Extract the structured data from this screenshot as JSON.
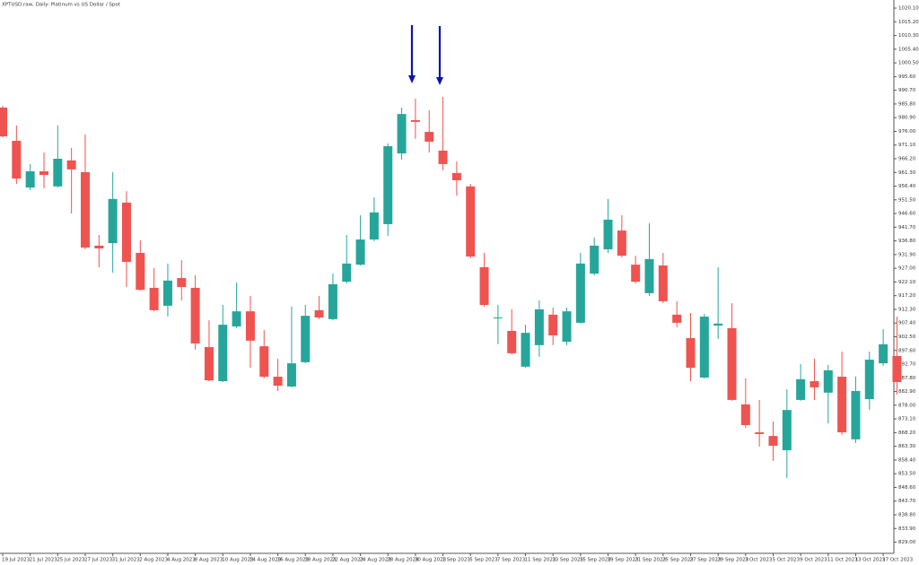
{
  "chart_data": {
    "type": "candlestick",
    "title": "XPTUSD.raw, Daily: Platinum vs US Dollar / Spot",
    "categories": [
      "19 Jul 2023",
      null,
      "21 Jul 2023",
      null,
      "25 Jul 2023",
      null,
      "27 Jul 2023",
      null,
      "31 Jul 2023",
      null,
      "2 Aug 2023",
      null,
      "4 Aug 2023",
      null,
      "8 Aug 2023",
      null,
      "10 Aug 2023",
      null,
      "14 Aug 2023",
      null,
      "16 Aug 2023",
      null,
      "18 Aug 2023",
      null,
      "22 Aug 2023",
      null,
      "24 Aug 2023",
      null,
      "28 Aug 2023",
      null,
      "30 Aug 2023",
      null,
      "1 Sep 2023",
      null,
      "5 Sep 2023",
      null,
      "7 Sep 2023",
      null,
      "11 Sep 2023",
      null,
      "13 Sep 2023",
      null,
      "15 Sep 2023",
      null,
      "19 Sep 2023",
      null,
      "21 Sep 2023",
      null,
      "25 Sep 2023",
      null,
      "27 Sep 2023",
      null,
      "29 Sep 2023",
      null,
      "3 Oct 2023",
      null,
      "5 Oct 2023",
      null,
      "9 Oct 2023",
      null,
      "11 Oct 2023",
      null,
      "13 Oct 2023",
      null,
      "17 Oct 2023",
      null
    ],
    "open": [
      984.5,
      972.6,
      955.9,
      961.7,
      956.3,
      965.6,
      961.4,
      935.1,
      936.0,
      950.5,
      932.5,
      920.0,
      913.6,
      923.5,
      920.0,
      898.8,
      886.6,
      906.2,
      911.6,
      899.1,
      888.2,
      884.7,
      893.4,
      912.0,
      908.8,
      922.2,
      928.3,
      937.3,
      942.8,
      968.1,
      980.0,
      975.8,
      969.1,
      961.1,
      956.3,
      927.4,
      909.1,
      904.6,
      891.8,
      899.5,
      910.4,
      900.7,
      907.5,
      925.1,
      933.8,
      940.5,
      928.3,
      918.1,
      928.0,
      910.4,
      902.0,
      887.9,
      906.5,
      905.6,
      878.3,
      868.3,
      867.0,
      861.9,
      879.9,
      886.6,
      882.5,
      888.2,
      865.8,
      880.2,
      893.0,
      895.6
    ],
    "high": [
      985.1,
      978.1,
      964.3,
      968.4,
      978.1,
      970.1,
      974.9,
      938.9,
      961.4,
      954.6,
      937.0,
      927.1,
      928.7,
      929.9,
      924.5,
      908.4,
      913.9,
      921.9,
      917.1,
      904.9,
      894.6,
      913.3,
      913.9,
      917.1,
      925.1,
      938.9,
      946.0,
      952.4,
      971.7,
      984.5,
      987.7,
      983.5,
      988.3,
      965.2,
      957.2,
      932.5,
      913.9,
      912.3,
      906.8,
      915.5,
      912.9,
      912.9,
      932.5,
      938.0,
      951.8,
      946.0,
      931.5,
      943.1,
      932.5,
      915.2,
      911.0,
      910.7,
      927.4,
      914.5,
      887.6,
      879.9,
      872.2,
      883.7,
      892.7,
      894.6,
      892.4,
      897.2,
      888.2,
      897.2,
      905.2,
      909.7
    ],
    "low": [
      973.9,
      957.2,
      955.0,
      955.6,
      955.9,
      946.6,
      933.8,
      927.4,
      925.4,
      920.3,
      919.0,
      911.6,
      909.7,
      915.5,
      897.9,
      886.6,
      886.3,
      905.6,
      891.4,
      887.6,
      883.1,
      884.4,
      893.1,
      908.8,
      908.4,
      921.6,
      928.0,
      936.7,
      938.6,
      965.9,
      973.3,
      968.4,
      962.0,
      953.0,
      930.6,
      913.3,
      899.8,
      896.2,
      891.4,
      895.3,
      899.5,
      899.5,
      907.2,
      924.5,
      932.5,
      930.9,
      921.6,
      917.1,
      914.5,
      905.9,
      886.6,
      887.6,
      901.7,
      879.6,
      869.9,
      863.2,
      858.1,
      852.0,
      879.6,
      879.9,
      871.5,
      867.4,
      864.5,
      876.3,
      892.1,
      881.8
    ],
    "close": [
      974.2,
      959.1,
      961.7,
      960.4,
      966.2,
      962.4,
      934.4,
      934.1,
      951.8,
      929.3,
      919.3,
      912.0,
      922.6,
      920.3,
      900.1,
      886.9,
      906.8,
      911.6,
      901.1,
      888.2,
      885.0,
      893.0,
      910.0,
      909.4,
      921.3,
      928.7,
      937.3,
      947.0,
      970.7,
      982.2,
      979.4,
      972.3,
      964.3,
      958.5,
      931.2,
      913.9,
      909.4,
      896.6,
      903.9,
      912.3,
      903.0,
      911.6,
      928.7,
      935.1,
      944.4,
      931.5,
      922.2,
      930.3,
      915.2,
      907.5,
      891.4,
      909.7,
      907.2,
      879.9,
      870.9,
      867.7,
      863.5,
      876.3,
      887.3,
      884.4,
      890.5,
      868.3,
      883.1,
      894.3,
      899.8,
      886.3
    ],
    "up_color": "#26a69a",
    "down_color": "#ef5350",
    "ylim": [
      825,
      1023
    ],
    "yticks": [
      {
        "value": 1020.1,
        "label": "1020.10"
      },
      {
        "value": 1015.2,
        "label": "1015.20"
      },
      {
        "value": 1010.3,
        "label": "1010.30"
      },
      {
        "value": 1005.4,
        "label": "1005.40"
      },
      {
        "value": 1000.5,
        "label": "1000.50"
      },
      {
        "value": 995.6,
        "label": "995.60"
      },
      {
        "value": 990.7,
        "label": "990.70"
      },
      {
        "value": 985.8,
        "label": "985.80"
      },
      {
        "value": 980.9,
        "label": "980.90"
      },
      {
        "value": 976,
        "label": "976.00"
      },
      {
        "value": 971.1,
        "label": "971.10"
      },
      {
        "value": 966.2,
        "label": "966.20"
      },
      {
        "value": 961.3,
        "label": "961.30"
      },
      {
        "value": 956.4,
        "label": "956.40"
      },
      {
        "value": 951.5,
        "label": "951.50"
      },
      {
        "value": 946.6,
        "label": "946.60"
      },
      {
        "value": 941.7,
        "label": "941.70"
      },
      {
        "value": 936.8,
        "label": "936.80"
      },
      {
        "value": 931.9,
        "label": "931.90"
      },
      {
        "value": 927,
        "label": "927.00"
      },
      {
        "value": 922.1,
        "label": "922.10"
      },
      {
        "value": 917.2,
        "label": "917.20"
      },
      {
        "value": 912.3,
        "label": "912.30"
      },
      {
        "value": 907.4,
        "label": "907.40"
      },
      {
        "value": 902.5,
        "label": "902.50"
      },
      {
        "value": 897.6,
        "label": "897.60"
      },
      {
        "value": 892.7,
        "label": "892.70"
      },
      {
        "value": 887.8,
        "label": "887.80"
      },
      {
        "value": 882.9,
        "label": "882.90"
      },
      {
        "value": 878,
        "label": "878.00"
      },
      {
        "value": 873.1,
        "label": "873.10"
      },
      {
        "value": 868.2,
        "label": "868.20"
      },
      {
        "value": 863.3,
        "label": "863.30"
      },
      {
        "value": 858.4,
        "label": "858.40"
      },
      {
        "value": 853.5,
        "label": "853.50"
      },
      {
        "value": 848.6,
        "label": "848.60"
      },
      {
        "value": 843.7,
        "label": "843.70"
      },
      {
        "value": 838.8,
        "label": "838.80"
      },
      {
        "value": 833.9,
        "label": "833.90"
      },
      {
        "value": 829,
        "label": "829.00"
      }
    ]
  }
}
